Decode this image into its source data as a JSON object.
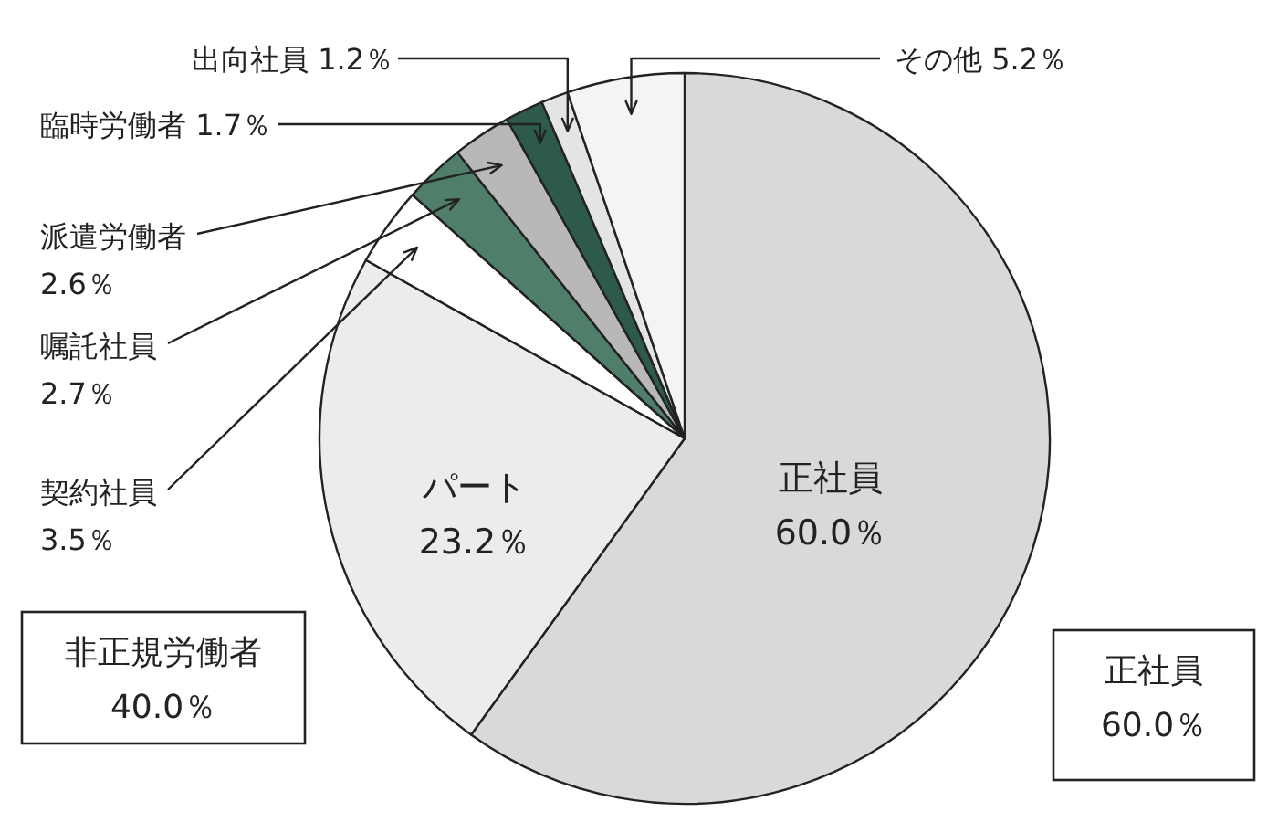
{
  "chart_data": {
    "type": "pie",
    "categories": [
      "正社員",
      "パート",
      "契約社員",
      "嘱託社員",
      "派遣労働者",
      "臨時労働者",
      "出向社員",
      "その他"
    ],
    "values": [
      60.0,
      23.2,
      3.5,
      2.7,
      2.6,
      1.7,
      1.2,
      5.2
    ],
    "value_labels": [
      "60.0％",
      "23.2％",
      "3.5％",
      "2.7％",
      "2.6％",
      "1.7％",
      "1.2％",
      "5.2％"
    ],
    "colors": [
      "#d9d9d9",
      "#ececec",
      "#ffffff",
      "#4f7f6a",
      "#b8b8b8",
      "#2e5a4a",
      "#e4e4e4",
      "#f4f4f4"
    ],
    "annotations": [
      "非正規労働者",
      "40.0％",
      "正社員",
      "60.0％"
    ]
  }
}
